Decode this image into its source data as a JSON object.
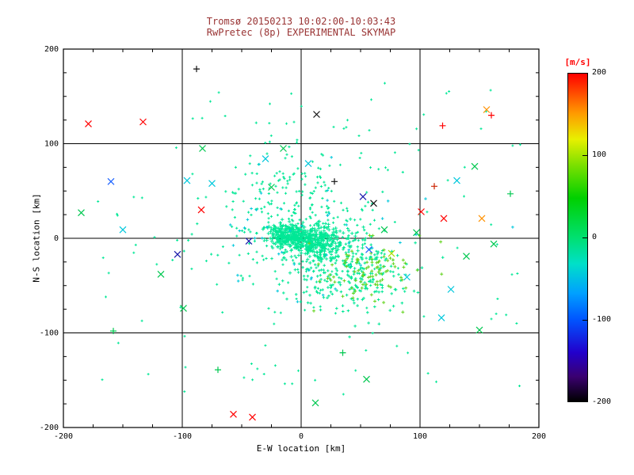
{
  "chart_data": {
    "type": "scatter",
    "title_line1": "Tromsø 20150213 10:02:00-10:03:43",
    "title_line2": "RwPretec (8p) EXPERIMENTAL SKYMAP",
    "xlabel": "E-W location [km]",
    "ylabel": "N-S location [km]",
    "xlim": [
      -200,
      200
    ],
    "ylim": [
      -200,
      200
    ],
    "xticks": [
      -200,
      -100,
      0,
      100,
      200
    ],
    "yticks": [
      -200,
      -100,
      0,
      100,
      200
    ],
    "grid_lines": [
      -100,
      0,
      100
    ],
    "minor_tick_step": 25,
    "grid": true,
    "title_color": "#993333",
    "axis_color": "#000000",
    "point_color_main": "#00e896",
    "colorbar": {
      "label": "[m/s]",
      "label_color": "#ff0000",
      "ticks": [
        200,
        100,
        0,
        -100,
        -200
      ],
      "min": -200,
      "max": 200,
      "stops": [
        [
          0.0,
          "#000000"
        ],
        [
          0.075,
          "#3a0070"
        ],
        [
          0.15,
          "#2200cc"
        ],
        [
          0.25,
          "#0055ff"
        ],
        [
          0.33,
          "#00a0ff"
        ],
        [
          0.42,
          "#00e0c8"
        ],
        [
          0.5,
          "#00e070"
        ],
        [
          0.62,
          "#00d000"
        ],
        [
          0.72,
          "#7ae000"
        ],
        [
          0.8,
          "#e8f000"
        ],
        [
          0.88,
          "#ff9900"
        ],
        [
          1.0,
          "#ff0000"
        ]
      ]
    },
    "clusters": [
      {
        "name": "core-right",
        "count": 420,
        "cx": 10,
        "cy": -3,
        "sx": 13,
        "sy": 8,
        "color": "#00e896",
        "marker": "+",
        "size": 2.2
      },
      {
        "name": "core-left",
        "count": 170,
        "cx": -14,
        "cy": 3,
        "sx": 8,
        "sy": 6,
        "color": "#00e896",
        "marker": "+",
        "size": 2.2
      },
      {
        "name": "halo",
        "count": 240,
        "cx": 0,
        "cy": 8,
        "sx": 36,
        "sy": 30,
        "color": "#00e896",
        "marker": "+",
        "size": 1.6
      },
      {
        "name": "upper-plume",
        "count": 70,
        "cx": -15,
        "cy": 55,
        "sx": 22,
        "sy": 28,
        "color": "#00e896",
        "marker": "+",
        "size": 1.6
      },
      {
        "name": "lower-right-lobe",
        "count": 260,
        "cx": 42,
        "cy": -38,
        "sx": 27,
        "sy": 20,
        "color": "#00e896",
        "marker": "+",
        "size": 1.8
      },
      {
        "name": "lower-right-green",
        "count": 90,
        "cx": 60,
        "cy": -35,
        "sx": 24,
        "sy": 16,
        "color": "#63d41e",
        "marker": "+",
        "size": 2.0
      },
      {
        "name": "cyan-sprinkle",
        "count": 45,
        "cx": 5,
        "cy": 0,
        "sx": 45,
        "sy": 35,
        "color": "#00c8dc",
        "marker": "+",
        "size": 1.8
      },
      {
        "name": "field-sparse",
        "count": 130,
        "uniform": true,
        "x0": -175,
        "x1": 185,
        "y0": -165,
        "y1": 165,
        "color": "#00e896",
        "marker": "+",
        "size": 1.5
      }
    ],
    "outliers": [
      {
        "x": -185,
        "y": 27,
        "c": "#00c850",
        "m": "x"
      },
      {
        "x": -179,
        "y": 121,
        "c": "#ff0000",
        "m": "x"
      },
      {
        "x": -160,
        "y": 60,
        "c": "#1e64ff",
        "m": "x"
      },
      {
        "x": -150,
        "y": 9,
        "c": "#00c8dc",
        "m": "x"
      },
      {
        "x": -158,
        "y": -98,
        "c": "#00c850",
        "m": "+"
      },
      {
        "x": -133,
        "y": 123,
        "c": "#ff0000",
        "m": "x"
      },
      {
        "x": -118,
        "y": -38,
        "c": "#00c850",
        "m": "x"
      },
      {
        "x": -104,
        "y": -17,
        "c": "#1a1aaa",
        "m": "x"
      },
      {
        "x": -96,
        "y": 61,
        "c": "#00c8dc",
        "m": "x"
      },
      {
        "x": -88,
        "y": 179,
        "c": "#111111",
        "m": "+"
      },
      {
        "x": -84,
        "y": 30,
        "c": "#ff0000",
        "m": "x"
      },
      {
        "x": -83,
        "y": 95,
        "c": "#00c850",
        "m": "x"
      },
      {
        "x": -75,
        "y": 58,
        "c": "#00c8dc",
        "m": "x"
      },
      {
        "x": -70,
        "y": -139,
        "c": "#00c850",
        "m": "+"
      },
      {
        "x": -57,
        "y": -186,
        "c": "#ff0000",
        "m": "x"
      },
      {
        "x": -44,
        "y": -3,
        "c": "#1a1aaa",
        "m": "x"
      },
      {
        "x": -30,
        "y": 84,
        "c": "#00c8dc",
        "m": "x"
      },
      {
        "x": -25,
        "y": 54,
        "c": "#00c850",
        "m": "x"
      },
      {
        "x": -15,
        "y": 95,
        "c": "#00c850",
        "m": "x"
      },
      {
        "x": 13,
        "y": 131,
        "c": "#111111",
        "m": "x"
      },
      {
        "x": 6,
        "y": 79,
        "c": "#00c8dc",
        "m": "x"
      },
      {
        "x": 28,
        "y": 60,
        "c": "#111111",
        "m": "+"
      },
      {
        "x": 52,
        "y": 44,
        "c": "#1a1aaa",
        "m": "x"
      },
      {
        "x": 61,
        "y": 37,
        "c": "#111111",
        "m": "x"
      },
      {
        "x": 57,
        "y": -12,
        "c": "#1e64ff",
        "m": "x"
      },
      {
        "x": 70,
        "y": 9,
        "c": "#00c850",
        "m": "x"
      },
      {
        "x": 76,
        "y": -16,
        "c": "#aadd00",
        "m": "x"
      },
      {
        "x": 89,
        "y": -41,
        "c": "#00c8dc",
        "m": "x"
      },
      {
        "x": 97,
        "y": 6,
        "c": "#00c850",
        "m": "x"
      },
      {
        "x": 101,
        "y": 28,
        "c": "#ff0000",
        "m": "x"
      },
      {
        "x": 112,
        "y": 55,
        "c": "#cc2200",
        "m": "+"
      },
      {
        "x": 120,
        "y": 21,
        "c": "#ff0000",
        "m": "x"
      },
      {
        "x": 126,
        "y": -54,
        "c": "#00c8dc",
        "m": "x"
      },
      {
        "x": 131,
        "y": 61,
        "c": "#00c8dc",
        "m": "x"
      },
      {
        "x": 139,
        "y": -19,
        "c": "#00c850",
        "m": "x"
      },
      {
        "x": 146,
        "y": 76,
        "c": "#00c850",
        "m": "x"
      },
      {
        "x": 152,
        "y": 21,
        "c": "#ff9100",
        "m": "x"
      },
      {
        "x": 156,
        "y": 136,
        "c": "#ff9100",
        "m": "x"
      },
      {
        "x": 162,
        "y": -6,
        "c": "#00c850",
        "m": "x"
      },
      {
        "x": 176,
        "y": 47,
        "c": "#00c850",
        "m": "+"
      },
      {
        "x": 160,
        "y": 130,
        "c": "#ff0000",
        "m": "+"
      },
      {
        "x": -41,
        "y": -189,
        "c": "#ff0000",
        "m": "x"
      },
      {
        "x": 12,
        "y": -174,
        "c": "#00c850",
        "m": "x"
      },
      {
        "x": 35,
        "y": -121,
        "c": "#00c850",
        "m": "+"
      },
      {
        "x": 55,
        "y": -149,
        "c": "#00c850",
        "m": "x"
      },
      {
        "x": -99,
        "y": -74,
        "c": "#00c850",
        "m": "x"
      },
      {
        "x": 118,
        "y": -84,
        "c": "#00c8dc",
        "m": "x"
      },
      {
        "x": 150,
        "y": -97,
        "c": "#00c850",
        "m": "x"
      },
      {
        "x": 119,
        "y": 119,
        "c": "#ff0000",
        "m": "+"
      }
    ]
  }
}
